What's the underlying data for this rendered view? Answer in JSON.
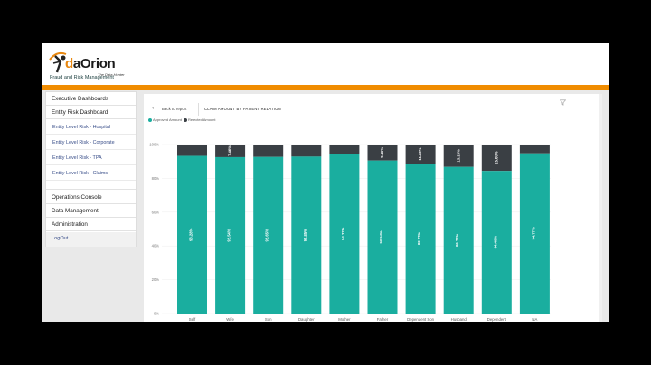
{
  "brand": {
    "logo_text_d": "d",
    "logo_text_rest": "aOrion",
    "tagline": "The Data Hunter",
    "subtitle": "Fraud and Risk Management",
    "accent": "#f08c00"
  },
  "sidebar": {
    "items": [
      {
        "label": "Executive Dashboards"
      },
      {
        "label": "Entity Risk Dashboard"
      },
      {
        "label": "Entity Level Risk - Hospital"
      },
      {
        "label": "Entity Level Risk - Corporate"
      },
      {
        "label": "Entity Level Risk - TPA"
      },
      {
        "label": "Entity Level Risk - Claims"
      },
      {
        "label": "Operations Console"
      },
      {
        "label": "Data Management"
      },
      {
        "label": "Administration"
      },
      {
        "label": "LogOut"
      }
    ]
  },
  "report": {
    "back_label": "Back to report",
    "title": "CLAIM AMOUNT BY PATIENT RELATION",
    "legend": [
      {
        "label": "Approved Amount",
        "color": "#1aae9f"
      },
      {
        "label": "Rejected Amount",
        "color": "#3a3f44"
      }
    ]
  },
  "chart_data": {
    "type": "bar",
    "stacked": true,
    "title": "CLAIM AMOUNT BY PATIENT RELATION",
    "categories": [
      "Self",
      "Wife",
      "Son",
      "Daughter",
      "Mother",
      "Father",
      "Dependent Son",
      "Husband",
      "Dependent Daughter",
      "NA"
    ],
    "series": [
      {
        "name": "Approved Amount",
        "color": "#1aae9f",
        "values": [
          93.28,
          92.54,
          92.65,
          92.85,
          94.37,
          90.54,
          88.77,
          86.77,
          84.4,
          94.77
        ],
        "labels": [
          "93.28%",
          "92.54%",
          "92.65%",
          "92.85%",
          "94.37%",
          "90.54%",
          "88.77%",
          "86.77%",
          "84.40%",
          "94.77%"
        ]
      },
      {
        "name": "Rejected Amount",
        "color": "#3a3f44",
        "values": [
          6.72,
          7.46,
          7.35,
          7.15,
          5.63,
          9.46,
          11.23,
          13.23,
          15.6,
          5.23
        ],
        "labels": [
          "",
          "7.46%",
          "",
          "",
          "",
          "9.46%",
          "11.23%",
          "13.23%",
          "15.60%",
          ""
        ]
      }
    ],
    "ylim": [
      0,
      100
    ],
    "yticks": [
      "0%",
      "20%",
      "40%",
      "60%",
      "80%",
      "100%"
    ],
    "xlabel": "",
    "ylabel": ""
  }
}
